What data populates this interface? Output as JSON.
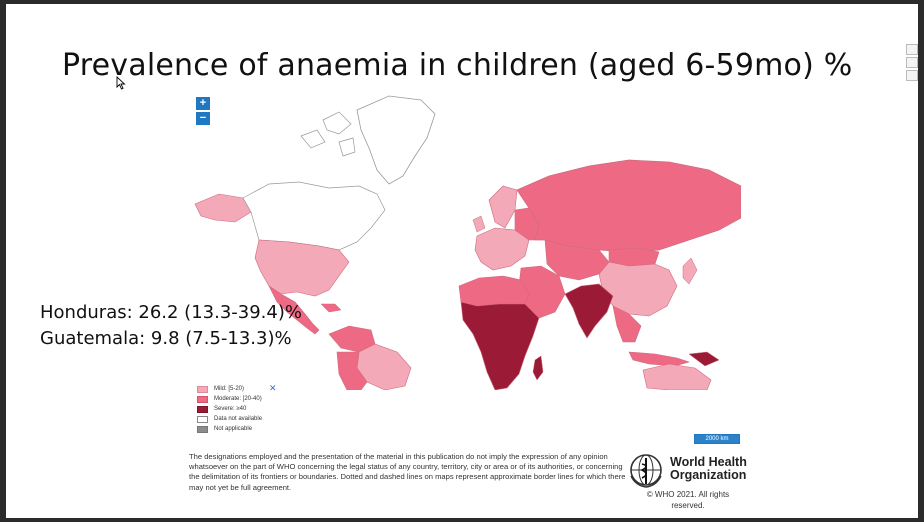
{
  "slide": {
    "title": "Prevalence of anaemia in children (aged 6-59mo) %",
    "stats": [
      "Honduras: 26.2 (13.3-39.4)%",
      "Guatemala: 9.8 (7.5-13.3)%"
    ]
  },
  "map": {
    "zoom_in_label": "+",
    "zoom_out_label": "−",
    "scale_label": "2000 km",
    "colors": {
      "mild": "#f4a9b8",
      "moderate": "#ee6a84",
      "severe": "#9b1b36",
      "no_data": "#ffffff",
      "not_applicable": "#8c8c8c",
      "ocean": "#ffffff",
      "border": "#d06a80"
    },
    "legend": {
      "items": [
        {
          "label": "Mild: [5-20)",
          "color": "#f4a9b8"
        },
        {
          "label": "Moderate: [20-40)",
          "color": "#ee6a84"
        },
        {
          "label": "Severe: ≥40",
          "color": "#9b1b36"
        },
        {
          "label": "Data not available",
          "color": "#ffffff"
        },
        {
          "label": "Not applicable",
          "color": "#8c8c8c"
        }
      ],
      "close_icon": "close-x-icon"
    }
  },
  "footer": {
    "disclaimer": "The designations employed and the presentation of the material in this publication do not imply the expression of any opinion whatsoever on the part of WHO concerning the legal status of any country, territory, city or area or of its authorities, or concerning the delimitation of its frontiers or boundaries. Dotted and dashed lines on maps represent approximate border lines for which there may not yet be full agreement.",
    "org_line1": "World Health",
    "org_line2": "Organization",
    "copyright": "© WHO 2021. All rights reserved."
  }
}
